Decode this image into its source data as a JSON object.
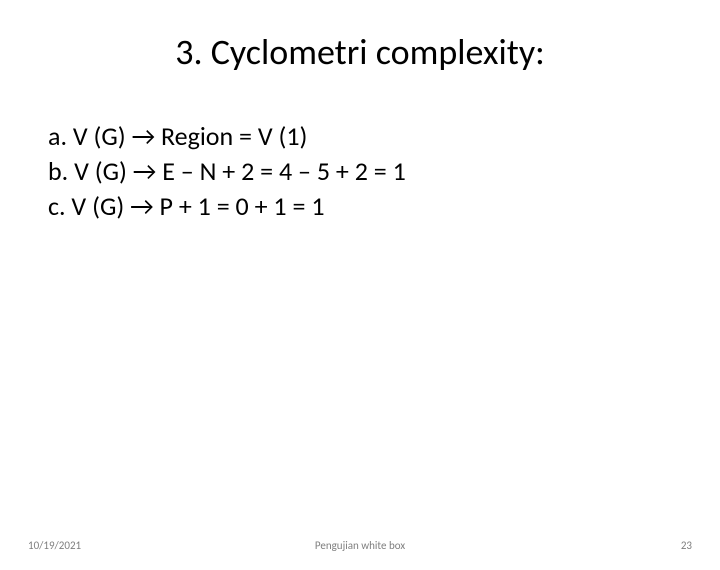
{
  "title": "3. Cyclometri complexity:",
  "lines": {
    "a": "a.  V (G) → Region = V (1)",
    "b": "b.  V (G) → E – N + 2 = 4 – 5 + 2 = 1",
    "c": "c.  V (G) → P + 1 = 0 + 1 = 1"
  },
  "footer": {
    "date": "10/19/2021",
    "center": "Pengujian white box",
    "page": "23"
  },
  "colors": {
    "background": "#ffffff",
    "text": "#000000",
    "footer_text": "#7f7f7f"
  },
  "typography": {
    "title_fontsize": 36,
    "body_fontsize": 26,
    "footer_fontsize": 11,
    "font_family": "Calibri"
  }
}
